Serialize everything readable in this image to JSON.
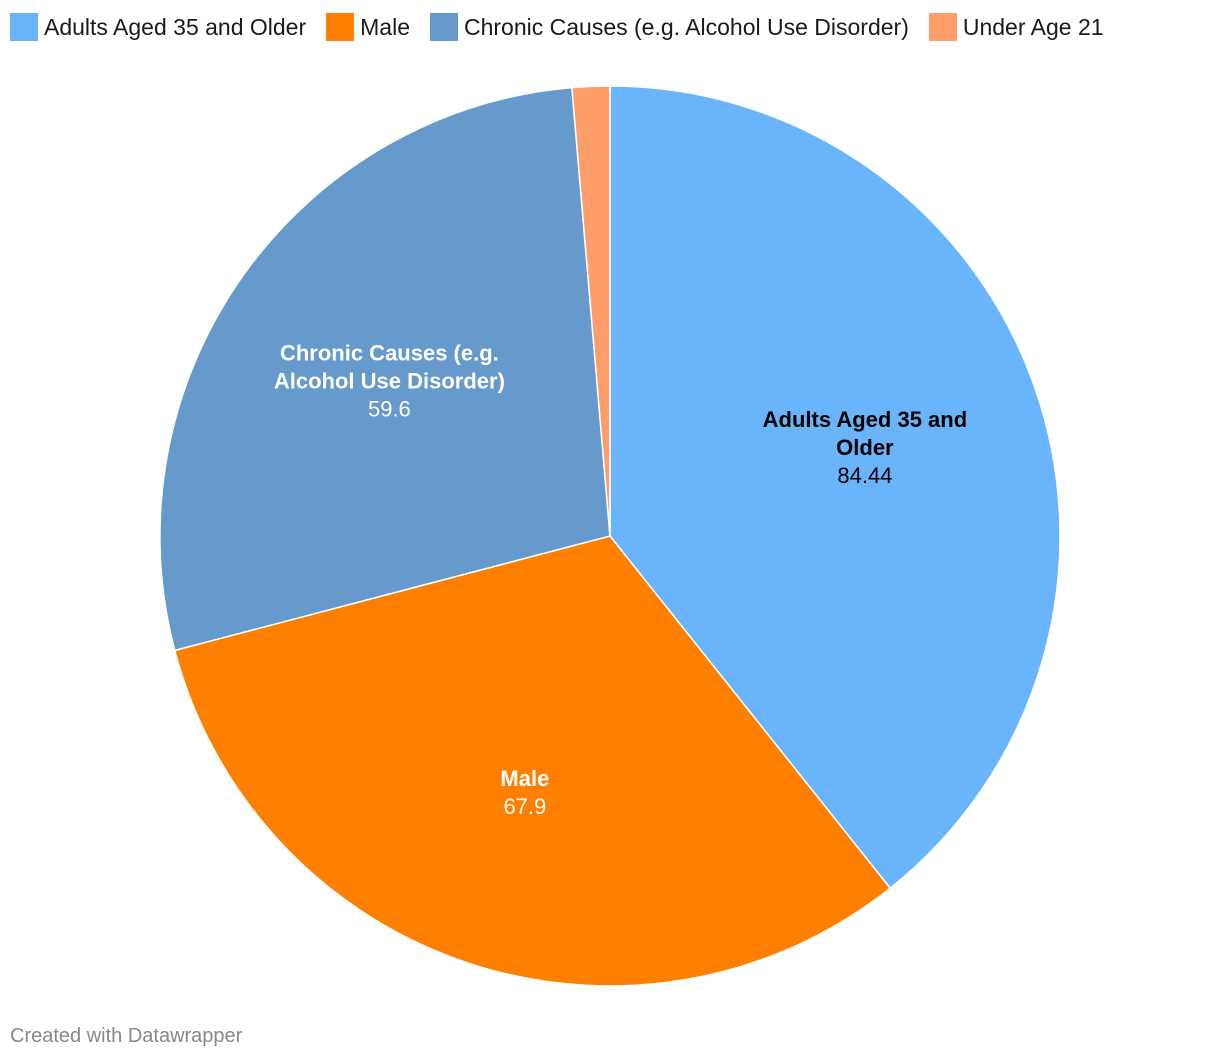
{
  "chart_data": {
    "type": "pie",
    "title": "",
    "legend_position": "top",
    "slices": [
      {
        "label": "Adults Aged 35 and Older",
        "label_lines": [
          "Adults Aged 35 and",
          "Older"
        ],
        "value": 84.44,
        "color": "#6ab4fc",
        "label_color": "#000000"
      },
      {
        "label": "Male",
        "label_lines": [
          "Male"
        ],
        "value": 67.9,
        "color": "#ff7f00",
        "label_color": "#ffffff"
      },
      {
        "label": "Chronic Causes (e.g. Alcohol Use Disorder)",
        "label_lines": [
          "Chronic Causes (e.g.",
          "Alcohol Use Disorder)"
        ],
        "value": 59.6,
        "color": "#6699cc",
        "label_color": "#ffffff"
      },
      {
        "label": "Under Age 21",
        "label_lines": [
          "Under Age 21"
        ],
        "value": 2.9,
        "color": "#ff9e6a",
        "label_color": "#ffffff",
        "show_label": false
      }
    ]
  },
  "credit": "Created with Datawrapper"
}
